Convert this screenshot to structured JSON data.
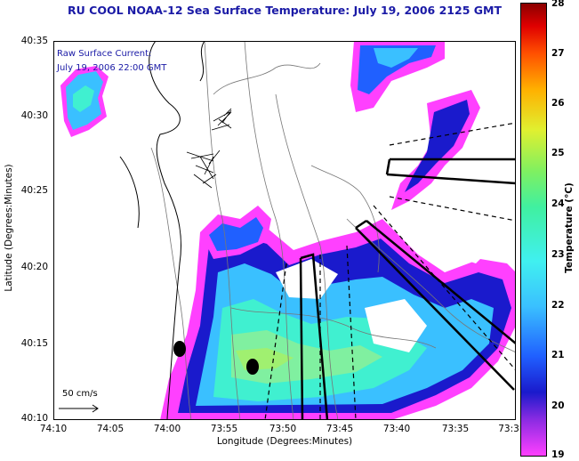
{
  "header": {
    "title": "RU COOL  NOAA-12  Sea Surface Temperature:  July 19, 2006 2125 GMT"
  },
  "legend": {
    "line1": "Raw Surface Current:",
    "line2": "July 19, 2006 22:00 GMT",
    "scale_label": "50 cm/s"
  },
  "axes": {
    "xlabel": "Longitude (Degrees:Minutes)",
    "ylabel": "Latitude (Degrees:Minutes)",
    "xticks": [
      "74:10",
      "74:05",
      "74:00",
      "73:55",
      "73:50",
      "73:45",
      "73:40",
      "73:35",
      "73:3"
    ],
    "yticks": [
      "40:35",
      "40:30",
      "40:25",
      "40:20",
      "40:15",
      "40:10"
    ]
  },
  "colorbar": {
    "title": "Temperature (°C)",
    "ticks": [
      "28",
      "27",
      "26",
      "25",
      "24",
      "23",
      "22",
      "21",
      "20",
      "19"
    ],
    "range": [
      19,
      28
    ]
  },
  "colors": {
    "title": "#1a1aa6",
    "land_outline": "#000000",
    "bathymetry": "#777777"
  }
}
